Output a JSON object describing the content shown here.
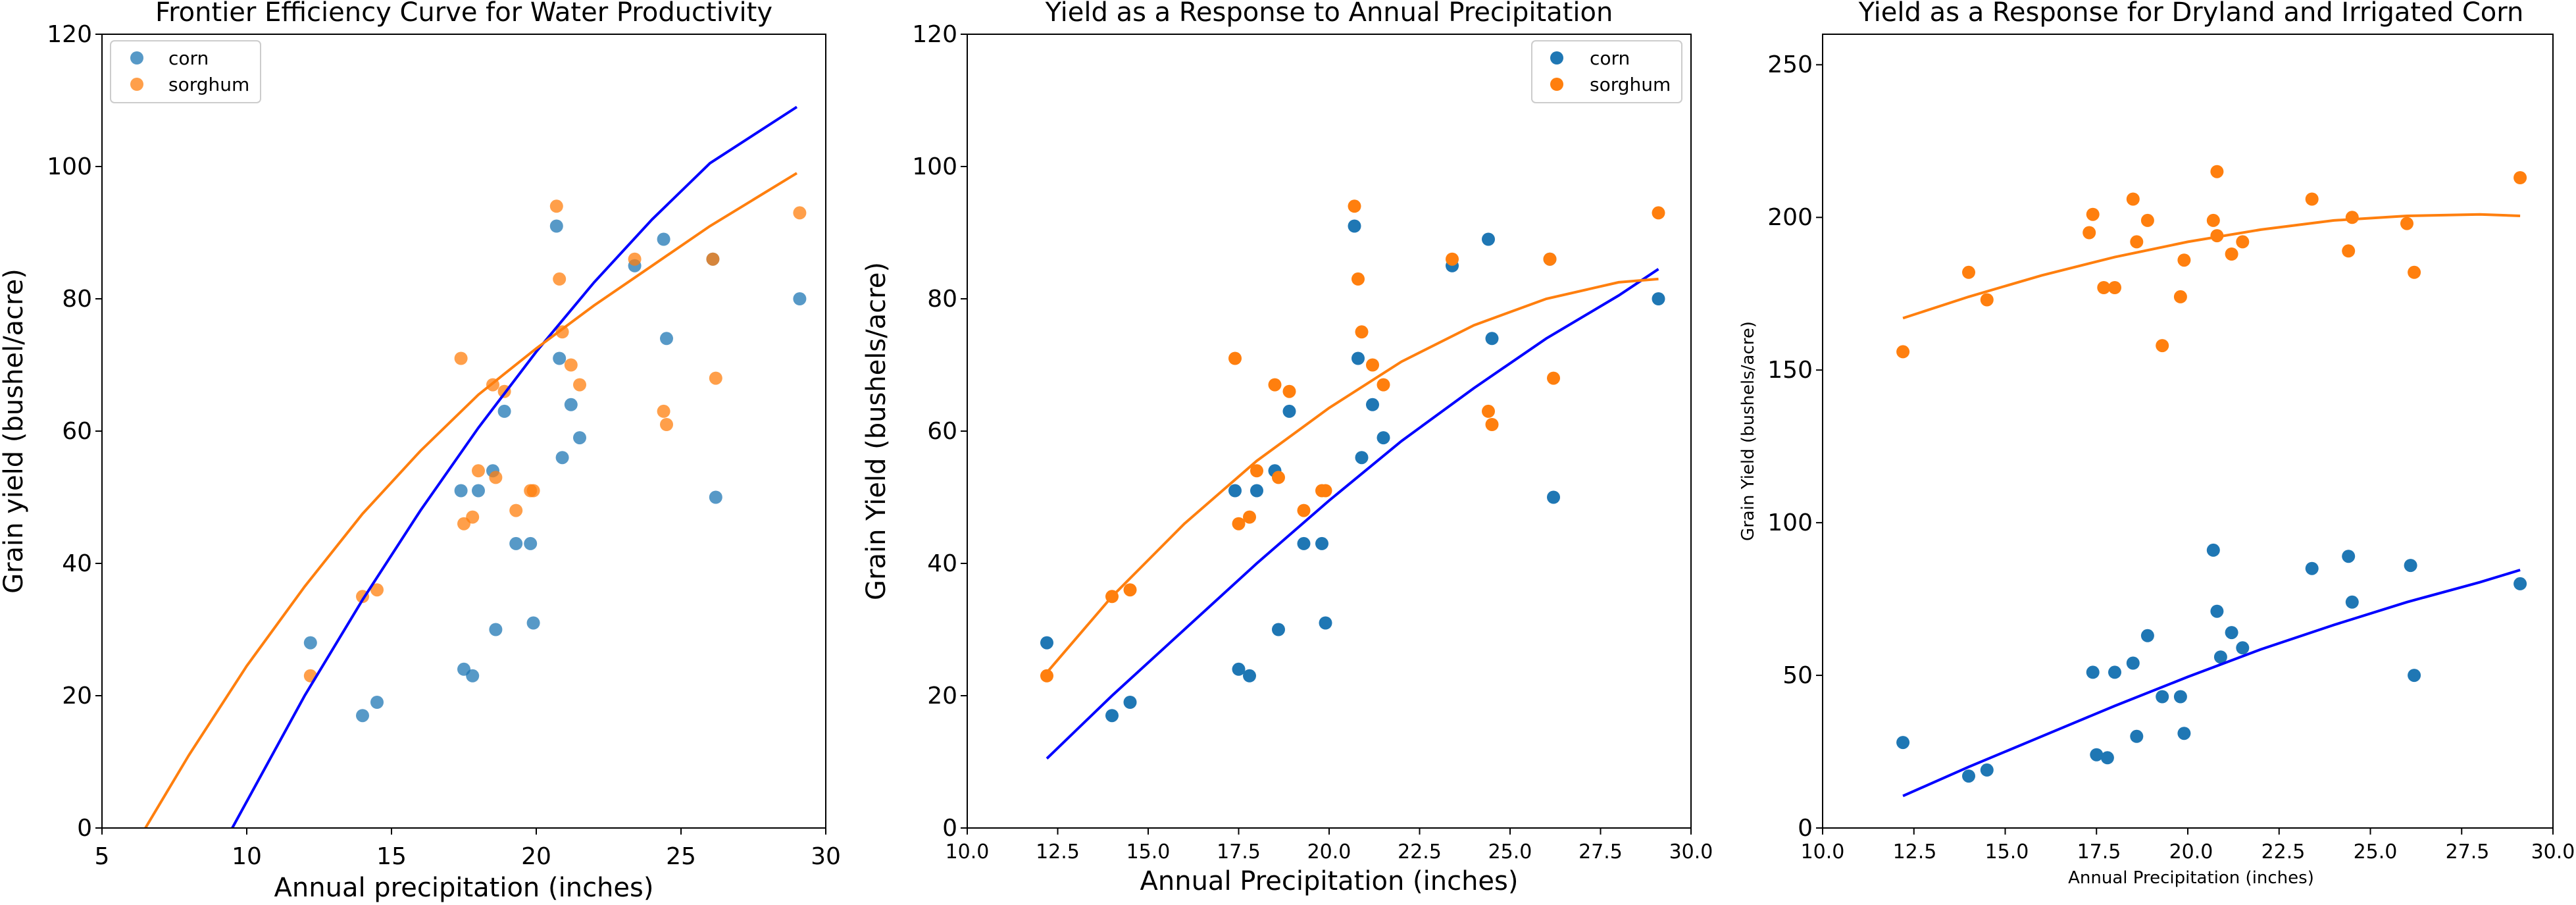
{
  "figure": {
    "background": "#ffffff"
  },
  "colors": {
    "corn": "#1f77b4",
    "sorghum": "#ff7f0e",
    "corn_fit": "#0000ff",
    "sorghum_fit": "#ff7f0e"
  },
  "chart_data": [
    {
      "type": "scatter",
      "title": "Frontier Efficiency Curve for Water Productivity",
      "xlabel": "Annual precipitation (inches)",
      "ylabel": "Grain yield (bushel/acre)",
      "xlim": [
        5,
        30
      ],
      "ylim": [
        0,
        120
      ],
      "xticks": [
        5,
        10,
        15,
        20,
        25,
        30
      ],
      "xtick_labels": [
        "5",
        "10",
        "15",
        "20",
        "25",
        "30"
      ],
      "yticks": [
        0,
        20,
        40,
        60,
        80,
        100,
        120
      ],
      "ytick_labels": [
        "0",
        "20",
        "40",
        "60",
        "80",
        "100",
        "120"
      ],
      "grid": false,
      "legend": {
        "placement": "top-left",
        "entries": [
          "corn",
          "sorghum"
        ]
      },
      "point_alpha": 0.75,
      "series": [
        {
          "name": "corn",
          "kind": "scatter",
          "color": "#1f77b4",
          "x": [
            12.2,
            14.0,
            14.5,
            17.4,
            17.5,
            17.8,
            18.0,
            18.5,
            18.6,
            18.9,
            19.3,
            19.8,
            19.9,
            20.7,
            20.8,
            20.9,
            21.2,
            21.5,
            23.4,
            24.4,
            24.5,
            26.1,
            26.2,
            29.1
          ],
          "y": [
            28,
            17,
            19,
            51,
            24,
            23,
            51,
            54,
            30,
            63,
            43,
            43,
            31,
            91,
            71,
            56,
            64,
            59,
            85,
            89,
            74,
            86,
            50,
            80
          ]
        },
        {
          "name": "sorghum",
          "kind": "scatter",
          "color": "#ff7f0e",
          "x": [
            12.2,
            14.0,
            14.5,
            17.4,
            17.5,
            17.8,
            18.0,
            18.5,
            18.6,
            18.9,
            19.3,
            19.8,
            19.9,
            20.7,
            20.8,
            20.9,
            21.2,
            21.5,
            23.4,
            24.4,
            24.5,
            26.1,
            26.2,
            29.1
          ],
          "y": [
            23,
            35,
            36,
            71,
            46,
            47,
            54,
            67,
            53,
            66,
            48,
            51,
            51,
            94,
            83,
            75,
            70,
            67,
            86,
            63,
            61,
            86,
            68,
            93
          ]
        },
        {
          "kind": "line",
          "color": "#0000ff",
          "x": [
            9.5,
            12,
            14,
            16,
            18,
            20,
            22,
            24,
            26,
            29
          ],
          "y": [
            0,
            20,
            34.5,
            48,
            60.5,
            72,
            82.5,
            92,
            100.5,
            109
          ]
        },
        {
          "kind": "line",
          "color": "#ff7f0e",
          "x": [
            6.5,
            8,
            10,
            12,
            14,
            16,
            18,
            20,
            22,
            24,
            26,
            29
          ],
          "y": [
            0,
            11,
            24.5,
            36.5,
            47.5,
            57,
            65.5,
            72.5,
            79,
            85,
            91,
            99
          ]
        }
      ]
    },
    {
      "type": "scatter",
      "title": "Yield as a Response to Annual Precipitation",
      "xlabel": "Annual Precipitation (inches)",
      "ylabel": "Grain Yield (bushels/acre)",
      "xlim": [
        10,
        30
      ],
      "ylim": [
        0,
        120
      ],
      "xticks": [
        10,
        12.5,
        15,
        17.5,
        20,
        22.5,
        25,
        27.5,
        30
      ],
      "xtick_labels": [
        "10.0",
        "12.5",
        "15.0",
        "17.5",
        "20.0",
        "22.5",
        "25.0",
        "27.5",
        "30.0"
      ],
      "yticks": [
        0,
        20,
        40,
        60,
        80,
        100,
        120
      ],
      "ytick_labels": [
        "0",
        "20",
        "40",
        "60",
        "80",
        "100",
        "120"
      ],
      "grid": false,
      "legend": {
        "placement": "top-right",
        "entries": [
          "corn",
          "sorghum"
        ]
      },
      "point_alpha": 1,
      "series": [
        {
          "name": "corn",
          "kind": "scatter",
          "color": "#1f77b4",
          "x": [
            12.2,
            14.0,
            14.5,
            17.4,
            17.5,
            17.8,
            18.0,
            18.5,
            18.6,
            18.9,
            19.3,
            19.8,
            19.9,
            20.7,
            20.8,
            20.9,
            21.2,
            21.5,
            23.4,
            24.4,
            24.5,
            26.1,
            26.2,
            29.1
          ],
          "y": [
            28,
            17,
            19,
            51,
            24,
            23,
            51,
            54,
            30,
            63,
            43,
            43,
            31,
            91,
            71,
            56,
            64,
            59,
            85,
            89,
            74,
            86,
            50,
            80
          ]
        },
        {
          "name": "sorghum",
          "kind": "scatter",
          "color": "#ff7f0e",
          "x": [
            12.2,
            14.0,
            14.5,
            17.4,
            17.5,
            17.8,
            18.0,
            18.5,
            18.6,
            18.9,
            19.3,
            19.8,
            19.9,
            20.7,
            20.8,
            20.9,
            21.2,
            21.5,
            23.4,
            24.4,
            24.5,
            26.1,
            26.2,
            29.1
          ],
          "y": [
            23,
            35,
            36,
            71,
            46,
            47,
            54,
            67,
            53,
            66,
            48,
            51,
            51,
            94,
            83,
            75,
            70,
            67,
            86,
            63,
            61,
            86,
            68,
            93
          ]
        },
        {
          "kind": "line",
          "color": "#0000ff",
          "x": [
            12.2,
            14,
            16,
            18,
            20,
            22,
            24,
            26,
            28,
            29.1
          ],
          "y": [
            10.5,
            20,
            30,
            40,
            49.5,
            58.5,
            66.5,
            74,
            80.5,
            84.5
          ]
        },
        {
          "kind": "line",
          "color": "#ff7f0e",
          "x": [
            12.2,
            14,
            16,
            18,
            20,
            22,
            24,
            26,
            28,
            29.1
          ],
          "y": [
            23.5,
            35,
            46,
            55.5,
            63.5,
            70.5,
            76,
            80,
            82.5,
            83
          ]
        }
      ]
    },
    {
      "type": "scatter",
      "title": "Yield as a Response for Dryland and Irrigated Corn",
      "xlabel": "Annual Precipitation (inches)",
      "ylabel": "Grain Yield (bushels/acre)",
      "xlim": [
        10,
        30
      ],
      "ylim": [
        0,
        260
      ],
      "xticks": [
        10,
        12.5,
        15,
        17.5,
        20,
        22.5,
        25,
        27.5,
        30
      ],
      "xtick_labels": [
        "10.0",
        "12.5",
        "15.0",
        "17.5",
        "20.0",
        "22.5",
        "25.0",
        "27.5",
        "30.0"
      ],
      "yticks": [
        0,
        50,
        100,
        150,
        200,
        250
      ],
      "ytick_labels": [
        "0",
        "50",
        "100",
        "150",
        "200",
        "250"
      ],
      "grid": false,
      "legend": null,
      "point_alpha": 1,
      "series": [
        {
          "kind": "scatter",
          "color": "#1f77b4",
          "x": [
            12.2,
            14.0,
            14.5,
            17.4,
            17.5,
            17.8,
            18.0,
            18.5,
            18.6,
            18.9,
            19.3,
            19.8,
            19.9,
            20.7,
            20.8,
            20.9,
            21.2,
            21.5,
            23.4,
            24.4,
            24.5,
            26.1,
            26.2,
            29.1
          ],
          "y": [
            28,
            17,
            19,
            51,
            24,
            23,
            51,
            54,
            30,
            63,
            43,
            43,
            31,
            91,
            71,
            56,
            64,
            59,
            85,
            89,
            74,
            86,
            50,
            80
          ]
        },
        {
          "kind": "scatter",
          "color": "#ff7f0e",
          "x": [
            12.2,
            14.0,
            14.5,
            17.3,
            17.4,
            17.7,
            18.0,
            18.5,
            18.6,
            18.9,
            19.3,
            19.8,
            19.9,
            20.7,
            20.8,
            20.8,
            21.2,
            21.5,
            23.4,
            24.4,
            24.5,
            26.0,
            26.2,
            29.1
          ],
          "y": [
            156,
            182,
            173,
            195,
            201,
            177,
            177,
            206,
            192,
            199,
            158,
            174,
            186,
            199,
            215,
            194,
            188,
            192,
            206,
            189,
            200,
            198,
            182,
            213
          ]
        },
        {
          "kind": "line",
          "color": "#0000ff",
          "x": [
            12.2,
            14,
            16,
            18,
            20,
            22,
            24,
            26,
            28,
            29.1
          ],
          "y": [
            10.5,
            20,
            30,
            40,
            49.5,
            58.5,
            66.5,
            74,
            80.5,
            84.5
          ]
        },
        {
          "kind": "line",
          "color": "#ff7f0e",
          "x": [
            12.2,
            14,
            16,
            18,
            20,
            22,
            24,
            26,
            28,
            29.1
          ],
          "y": [
            167,
            174,
            181,
            187,
            192,
            196,
            199,
            200.5,
            201,
            200.5
          ]
        }
      ]
    }
  ]
}
